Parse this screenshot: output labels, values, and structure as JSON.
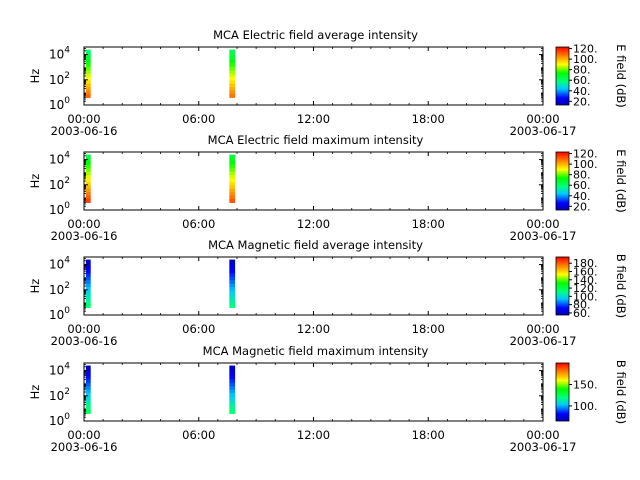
{
  "chart_data": [
    {
      "type": "heatmap",
      "title": "MCA  Electric field average intensity",
      "ylabel": "Hz",
      "yscale": "log",
      "ylim": [
        1,
        40000
      ],
      "y_ticks": [
        {
          "base": "10",
          "exp": "0"
        },
        {
          "base": "10",
          "exp": "2"
        },
        {
          "base": "10",
          "exp": "4"
        }
      ],
      "x_ticks": [
        "00:00",
        "06:00",
        "12:00",
        "18:00",
        "00:00"
      ],
      "x_date_labels": [
        "2003-06-16",
        "2003-06-17"
      ],
      "colorbar": {
        "label": "E field (dB)",
        "min": 13,
        "max": 123,
        "ticks": [
          "20.",
          "40.",
          "60.",
          "80.",
          "100.",
          "120."
        ]
      },
      "bursts": [
        {
          "start_hour": 0.1,
          "end_hour": 0.35,
          "freq_min_hz": 4,
          "freq_max_hz": 25000,
          "level_top_db": 60,
          "level_bottom_db": 110
        },
        {
          "start_hour": 7.6,
          "end_hour": 7.9,
          "freq_min_hz": 4,
          "freq_max_hz": 25000,
          "level_top_db": 62,
          "level_bottom_db": 108
        }
      ]
    },
    {
      "type": "heatmap",
      "title": "MCA  Electric field maximum intensity",
      "ylabel": "Hz",
      "yscale": "log",
      "ylim": [
        1,
        40000
      ],
      "y_ticks": [
        {
          "base": "10",
          "exp": "0"
        },
        {
          "base": "10",
          "exp": "2"
        },
        {
          "base": "10",
          "exp": "4"
        }
      ],
      "x_ticks": [
        "00:00",
        "06:00",
        "12:00",
        "18:00",
        "00:00"
      ],
      "x_date_labels": [
        "2003-06-16",
        "2003-06-17"
      ],
      "colorbar": {
        "label": "E field (dB)",
        "min": 13,
        "max": 123,
        "ticks": [
          "20.",
          "40.",
          "60.",
          "80.",
          "100.",
          "120."
        ]
      },
      "bursts": [
        {
          "start_hour": 0.1,
          "end_hour": 0.35,
          "freq_min_hz": 4,
          "freq_max_hz": 25000,
          "level_top_db": 65,
          "level_bottom_db": 115
        },
        {
          "start_hour": 7.6,
          "end_hour": 7.9,
          "freq_min_hz": 4,
          "freq_max_hz": 25000,
          "level_top_db": 66,
          "level_bottom_db": 112
        }
      ]
    },
    {
      "type": "heatmap",
      "title": "MCA  Magnetic field average intensity",
      "ylabel": "Hz",
      "yscale": "log",
      "ylim": [
        1,
        40000
      ],
      "y_ticks": [
        {
          "base": "10",
          "exp": "0"
        },
        {
          "base": "10",
          "exp": "2"
        },
        {
          "base": "10",
          "exp": "4"
        }
      ],
      "x_ticks": [
        "00:00",
        "06:00",
        "12:00",
        "18:00",
        "00:00"
      ],
      "x_date_labels": [
        "2003-06-16",
        "2003-06-17"
      ],
      "colorbar": {
        "label": "B field (dB)",
        "min": 55,
        "max": 195,
        "ticks": [
          "60.",
          "80.",
          "100.",
          "120.",
          "140.",
          "160.",
          "180."
        ]
      },
      "bursts": [
        {
          "start_hour": 0.1,
          "end_hour": 0.35,
          "freq_min_hz": 4,
          "freq_max_hz": 25000,
          "level_top_db": 60,
          "level_bottom_db": 115
        },
        {
          "start_hour": 7.6,
          "end_hour": 7.9,
          "freq_min_hz": 4,
          "freq_max_hz": 25000,
          "level_top_db": 60,
          "level_bottom_db": 112
        }
      ]
    },
    {
      "type": "heatmap",
      "title": "MCA  Magnetic field maximum intensity",
      "ylabel": "Hz",
      "yscale": "log",
      "ylim": [
        1,
        40000
      ],
      "y_ticks": [
        {
          "base": "10",
          "exp": "0"
        },
        {
          "base": "10",
          "exp": "2"
        },
        {
          "base": "10",
          "exp": "4"
        }
      ],
      "x_ticks": [
        "00:00",
        "06:00",
        "12:00",
        "18:00",
        "00:00"
      ],
      "x_date_labels": [
        "2003-06-16",
        "2003-06-17"
      ],
      "colorbar": {
        "label": "B field (dB)",
        "min": 65,
        "max": 200,
        "ticks": [
          "100.",
          "150."
        ]
      },
      "bursts": [
        {
          "start_hour": 0.1,
          "end_hour": 0.35,
          "freq_min_hz": 4,
          "freq_max_hz": 25000,
          "level_top_db": 70,
          "level_bottom_db": 125
        },
        {
          "start_hour": 7.6,
          "end_hour": 7.9,
          "freq_min_hz": 4,
          "freq_max_hz": 25000,
          "level_top_db": 70,
          "level_bottom_db": 122
        }
      ]
    }
  ]
}
